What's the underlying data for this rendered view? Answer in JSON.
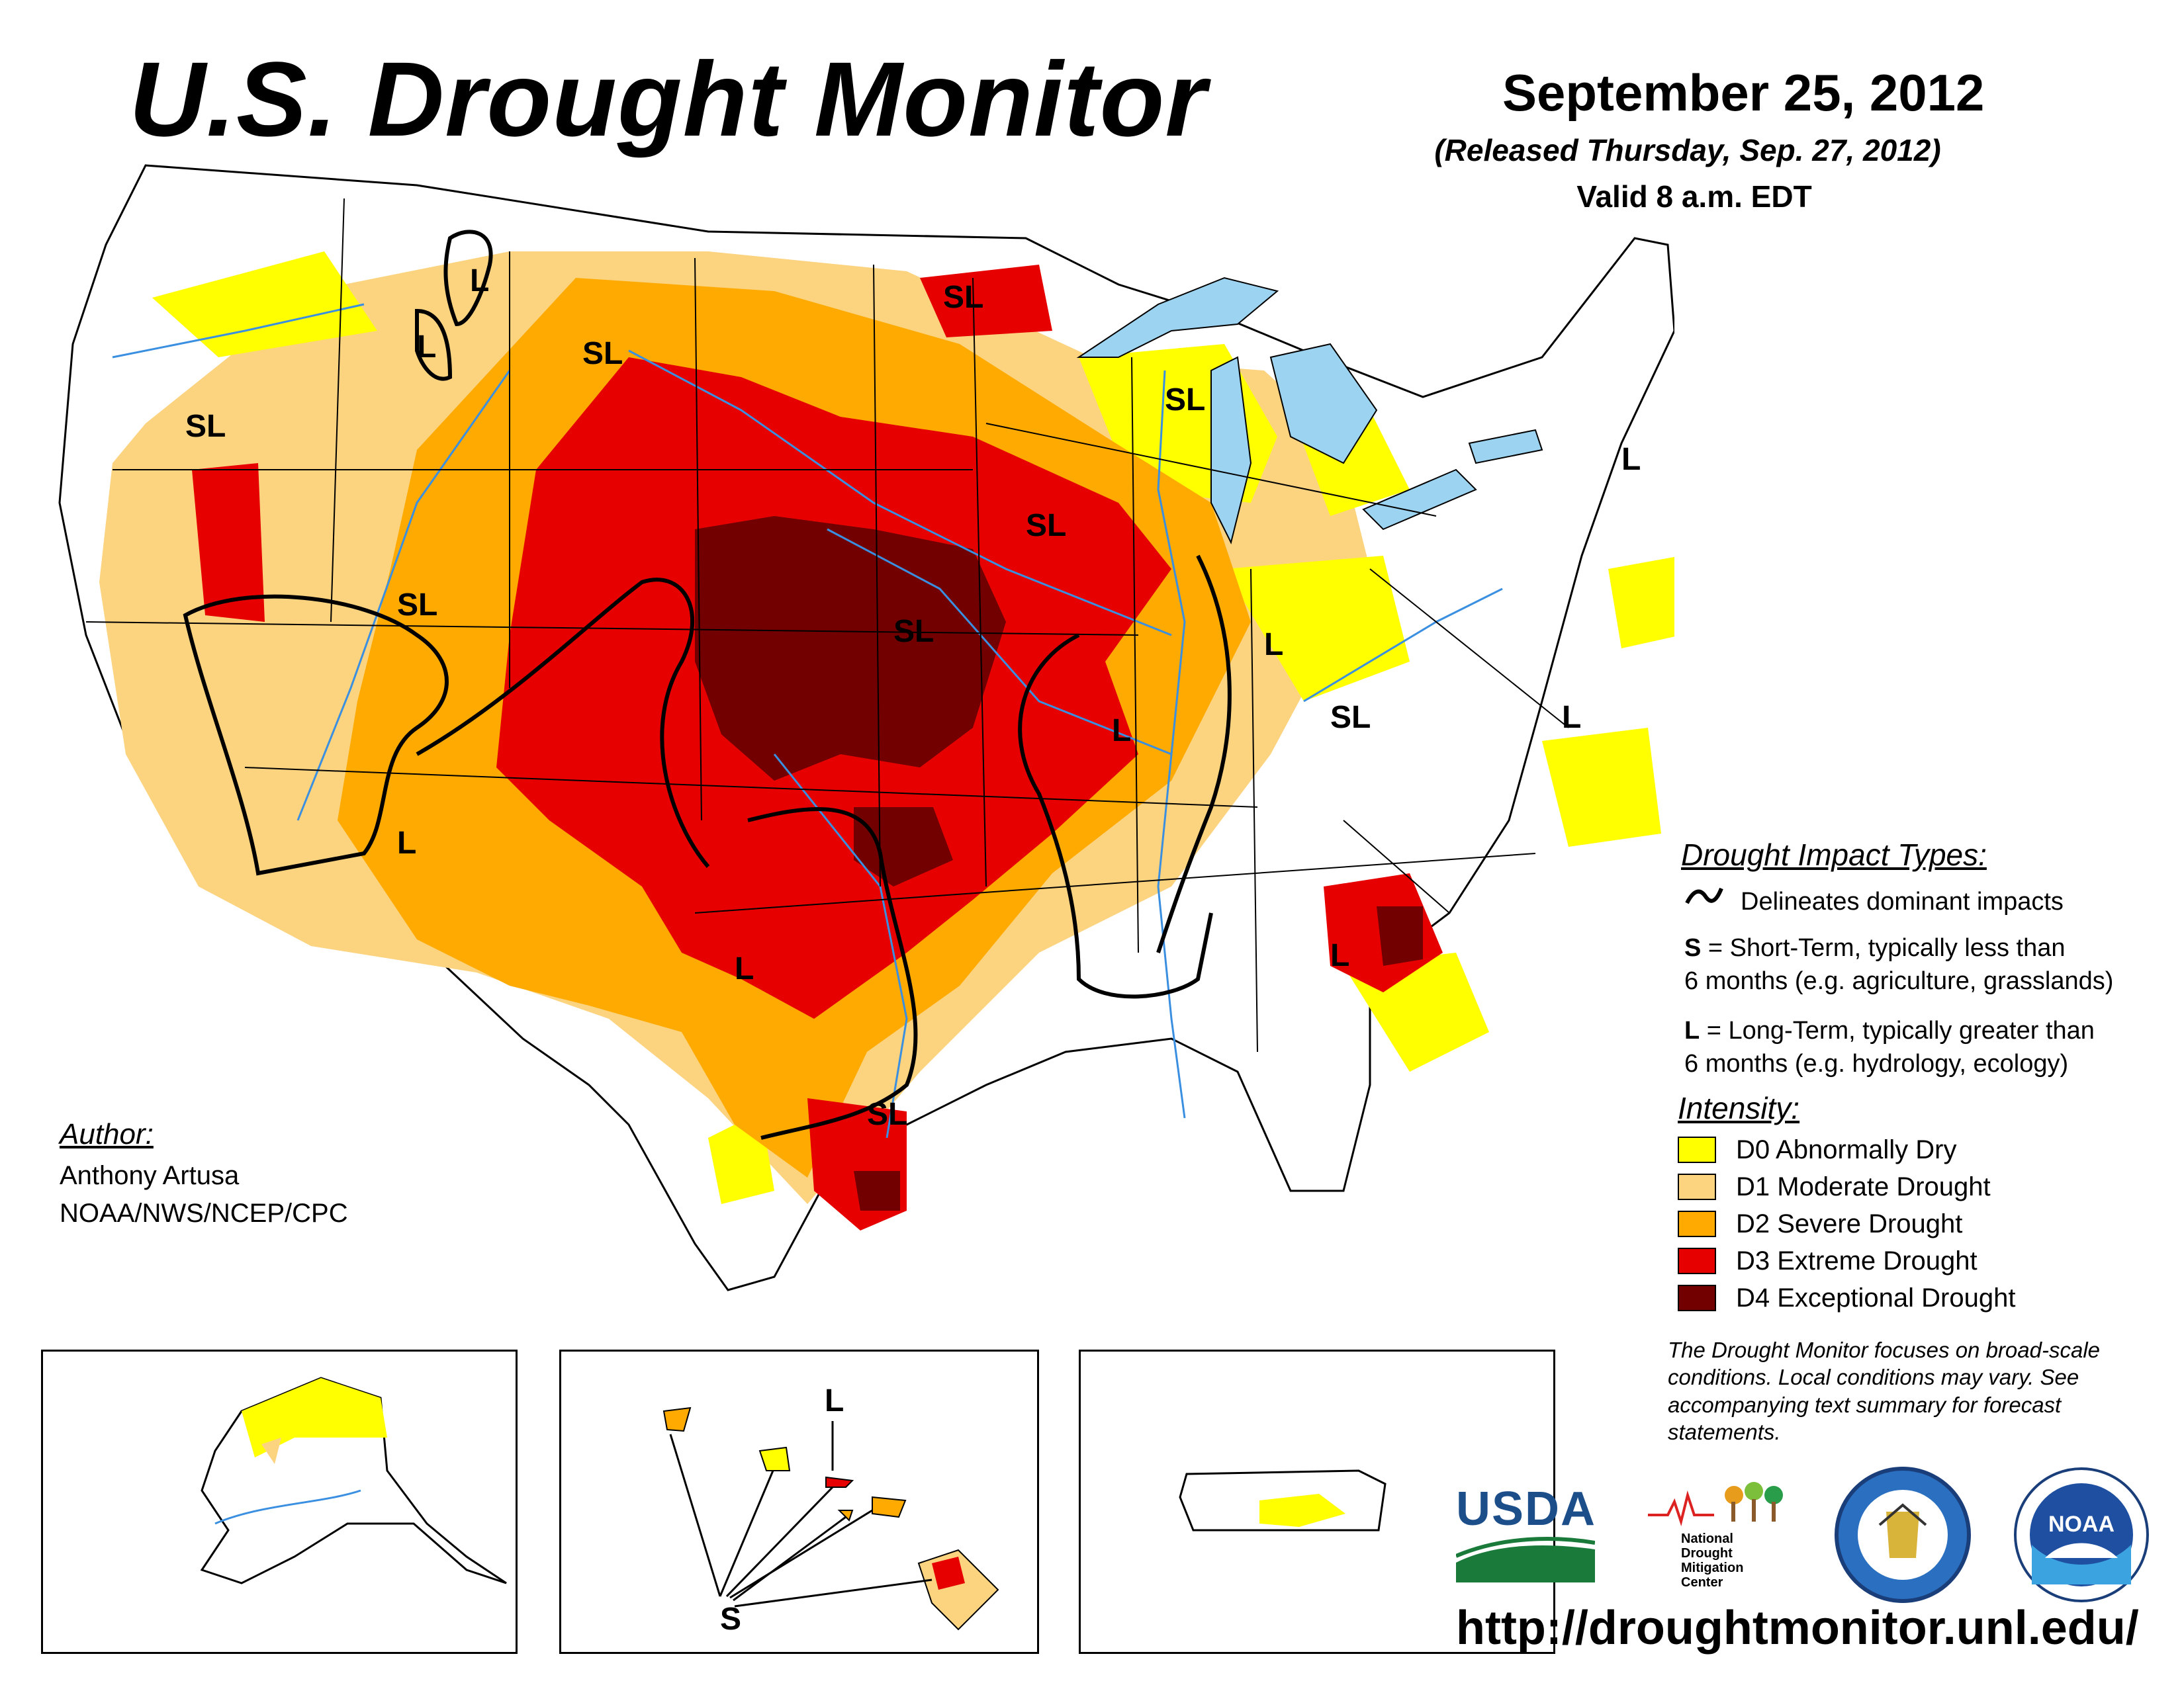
{
  "header": {
    "title": "U.S. Drought Monitor",
    "date": "September 25, 2012",
    "released": "(Released Thursday, Sep. 27, 2012)",
    "valid": "Valid 8 a.m. EDT"
  },
  "map_labels": {
    "sl": "SL",
    "l": "L",
    "s": "S"
  },
  "impact_types": {
    "heading": "Drought Impact Types:",
    "delineates": "Delineates dominant impacts",
    "short_key": "S",
    "short_line1": " = Short-Term, typically less than",
    "short_line2": "6 months (e.g. agriculture, grasslands)",
    "long_key": "L",
    "long_line1": " = Long-Term, typically greater than",
    "long_line2": "6 months (e.g. hydrology, ecology)"
  },
  "intensity": {
    "heading": "Intensity:",
    "levels": [
      {
        "label": "D0 Abnormally Dry",
        "color": "#ffff00"
      },
      {
        "label": "D1 Moderate Drought",
        "color": "#fcd37f"
      },
      {
        "label": "D2 Severe Drought",
        "color": "#ffaa00"
      },
      {
        "label": "D3 Extreme Drought",
        "color": "#e60000"
      },
      {
        "label": "D4 Exceptional Drought",
        "color": "#730000"
      }
    ]
  },
  "author": {
    "heading": "Author:",
    "name": "Anthony Artusa",
    "org": "NOAA/NWS/NCEP/CPC"
  },
  "disclaimer": "The Drought Monitor focuses on broad-scale conditions. Local conditions may vary. See accompanying text summary for forecast statements.",
  "logos": {
    "usda": "USDA",
    "ndmc_line1": "National",
    "ndmc_line2": "Drought",
    "ndmc_line3": "Mitigation",
    "ndmc_line4": "Center",
    "noaa": "NOAA"
  },
  "url": "http://droughtmonitor.unl.edu/",
  "colors": {
    "water": "#9cd3f0",
    "river": "#3a8fe0",
    "border": "#000000"
  }
}
